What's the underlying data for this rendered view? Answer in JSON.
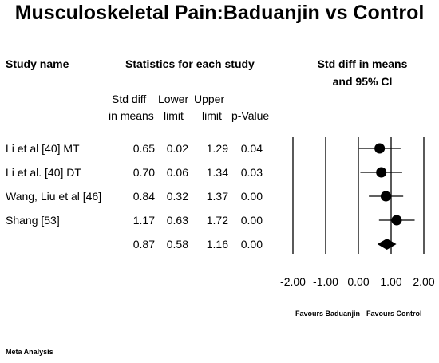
{
  "title": "Musculoskeletal Pain:Baduanjin vs Control",
  "headers": {
    "study_name": "Study name",
    "statistics": "Statistics for each study",
    "ci_line1": "Std diff in means",
    "ci_line2": "and 95% CI"
  },
  "columns": {
    "smd_line1": "Std diff",
    "smd_line2": "in means",
    "lower_line1": "Lower",
    "lower_line2": "limit",
    "upper_line1": "Upper",
    "upper_line2": "limit",
    "pvalue": "p-Value"
  },
  "rows": [
    {
      "study": "Li et al [40] MT",
      "smd": "0.65",
      "lower": "0.02",
      "upper": "1.29",
      "p": "0.04"
    },
    {
      "study": "Li et al. [40] DT",
      "smd": "0.70",
      "lower": "0.06",
      "upper": "1.34",
      "p": "0.03"
    },
    {
      "study": "Wang, Liu et al [46]",
      "smd": "0.84",
      "lower": "0.32",
      "upper": "1.37",
      "p": "0.00"
    },
    {
      "study": "Shang [53]",
      "smd": "1.17",
      "lower": "0.63",
      "upper": "1.72",
      "p": "0.00"
    },
    {
      "study": "",
      "smd": "0.87",
      "lower": "0.58",
      "upper": "1.16",
      "p": "0.00"
    }
  ],
  "favours_left": "Favours Baduanjin",
  "favours_right": "Favours Control",
  "footer": "Meta Analysis",
  "chart_data": {
    "type": "forest",
    "title": "Musculoskeletal Pain:Baduanjin vs Control",
    "xlabel": "Std diff in means and 95% CI",
    "xlim": [
      -2.0,
      2.0
    ],
    "ticks": [
      -2.0,
      -1.0,
      0.0,
      1.0,
      2.0
    ],
    "tick_labels": [
      "-2.00",
      "-1.00",
      "0.00",
      "1.00",
      "2.00"
    ],
    "studies": [
      {
        "name": "Li et al [40] MT",
        "estimate": 0.65,
        "lower": 0.02,
        "upper": 1.29
      },
      {
        "name": "Li et al. [40] DT",
        "estimate": 0.7,
        "lower": 0.06,
        "upper": 1.34
      },
      {
        "name": "Wang, Liu et al [46]",
        "estimate": 0.84,
        "lower": 0.32,
        "upper": 1.37
      },
      {
        "name": "Shang [53]",
        "estimate": 1.17,
        "lower": 0.63,
        "upper": 1.72
      }
    ],
    "summary": {
      "estimate": 0.87,
      "lower": 0.58,
      "upper": 1.16
    }
  }
}
